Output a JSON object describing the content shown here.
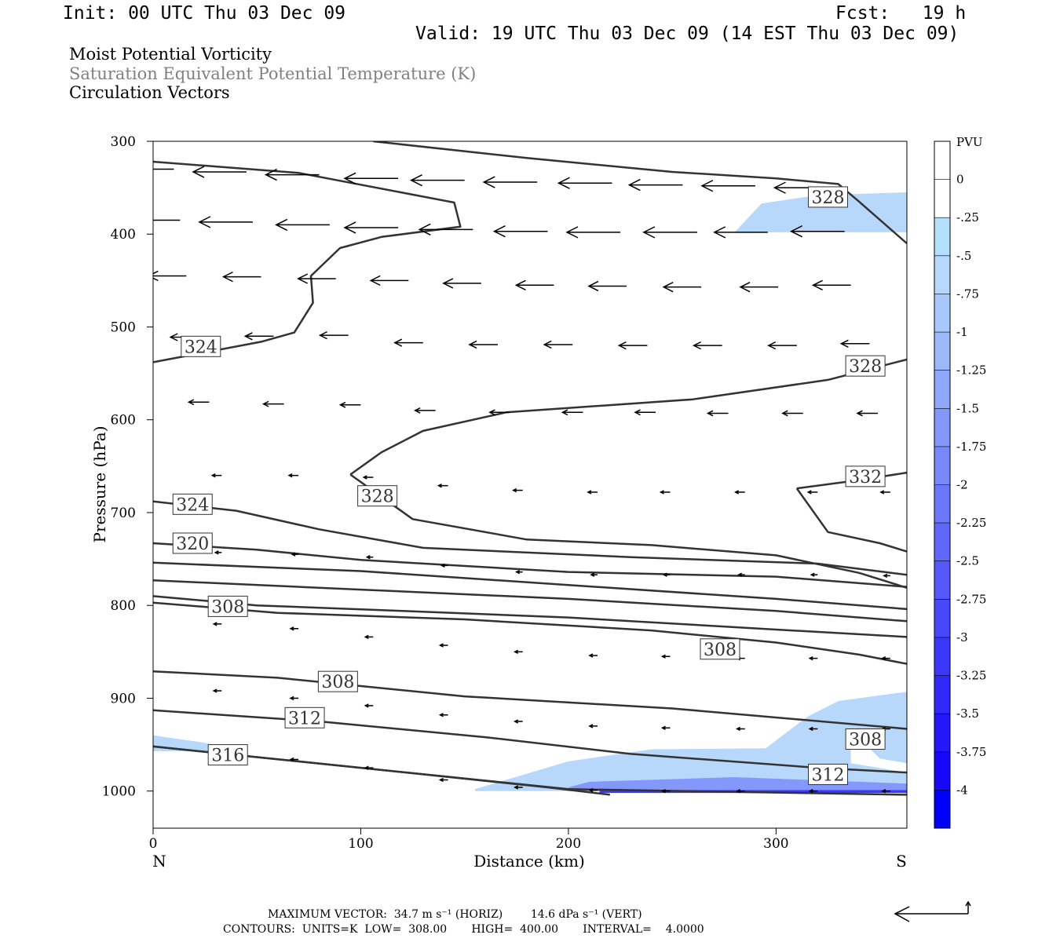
{
  "header": {
    "init": "Init: 00 UTC Thu 03 Dec 09",
    "fcst": "Fcst:   19 h",
    "valid": "Valid: 19 UTC Thu 03 Dec 09 (14 EST Thu 03 Dec 09)"
  },
  "titles": [
    "Moist Potential Vorticity",
    "Saturation Equivalent Potential Temperature (K)",
    "Circulation Vectors"
  ],
  "footer": {
    "max_vector": "MAXIMUM VECTOR:  34.7 m s⁻¹ (HORIZ)        14.6 dPa s⁻¹ (VERT)",
    "contours": "CONTOURS:  UNITS=K  LOW=  308.00       HIGH=  400.00       INTERVAL=    4.0000"
  },
  "colors": {
    "contour": "#333333",
    "fill_light": "#b3e0fa",
    "fill_dark": "#0000ff",
    "vector": "#000000"
  },
  "chart_data": {
    "type": "cross-section",
    "xlabel": "Distance (km)",
    "ylabel": "Pressure (hPa)",
    "xlim": [
      0,
      363
    ],
    "ylim": [
      1040,
      300
    ],
    "xticks": [
      0,
      100,
      200,
      300
    ],
    "yticks": [
      300,
      400,
      500,
      600,
      700,
      800,
      900,
      1000
    ],
    "x_end_labels": {
      "left": "N",
      "right": "S"
    },
    "colorbar": {
      "unit": "PVU",
      "levels": [
        "0",
        "-.25",
        "-.5",
        "-.75",
        "-1",
        "-1.25",
        "-1.5",
        "-1.75",
        "-2",
        "-2.25",
        "-2.5",
        "-2.75",
        "-3",
        "-3.25",
        "-3.5",
        "-3.75",
        "-4"
      ],
      "colors": [
        "#ffffff",
        "#ffffff",
        "#b3e0fa",
        "#b7d8fb",
        "#a8c8fb",
        "#9cb8fb",
        "#90a8fb",
        "#8498fb",
        "#7888fb",
        "#6c78fb",
        "#6068fb",
        "#5458fb",
        "#4848fb",
        "#3c38fb",
        "#3028fb",
        "#2418fb",
        "#1808fb",
        "#0000ff"
      ]
    },
    "contours": [
      {
        "label": "324",
        "points": [
          [
            0,
            538
          ],
          [
            52,
            516
          ],
          [
            68,
            506
          ],
          [
            77,
            474
          ],
          [
            76,
            445
          ],
          [
            90,
            415
          ],
          [
            110,
            403
          ],
          [
            148,
            392
          ],
          [
            145,
            366
          ],
          [
            70,
            334
          ],
          [
            0,
            322
          ]
        ]
      },
      {
        "label": "328",
        "points": [
          [
            106,
            300
          ],
          [
            180,
            318
          ],
          [
            250,
            333
          ],
          [
            300,
            340
          ],
          [
            330,
            346
          ],
          [
            340,
            365
          ],
          [
            363,
            410
          ]
        ]
      },
      {
        "label": "328",
        "points": [
          [
            95,
            659
          ],
          [
            110,
            635
          ],
          [
            130,
            612
          ],
          [
            170,
            592
          ],
          [
            260,
            578
          ],
          [
            325,
            557
          ],
          [
            363,
            535
          ]
        ]
      },
      {
        "label": "328",
        "points": [
          [
            95,
            659
          ],
          [
            125,
            707
          ],
          [
            180,
            729
          ],
          [
            240,
            735
          ],
          [
            300,
            746
          ],
          [
            340,
            765
          ],
          [
            363,
            781
          ]
        ]
      },
      {
        "label": "332",
        "points": [
          [
            310,
            674
          ],
          [
            340,
            665
          ],
          [
            363,
            657
          ]
        ]
      },
      {
        "label": "332",
        "points": [
          [
            310,
            674
          ],
          [
            325,
            721
          ],
          [
            350,
            733
          ],
          [
            363,
            742
          ]
        ]
      },
      {
        "label": "324",
        "points": [
          [
            0,
            688
          ],
          [
            40,
            698
          ],
          [
            80,
            718
          ],
          [
            130,
            738
          ],
          [
            230,
            748
          ],
          [
            320,
            755
          ],
          [
            363,
            767
          ]
        ]
      },
      {
        "label": "320",
        "points": [
          [
            0,
            733
          ],
          [
            50,
            740
          ],
          [
            100,
            751
          ],
          [
            200,
            764
          ],
          [
            300,
            769
          ],
          [
            363,
            780
          ]
        ]
      },
      {
        "label": "",
        "points": [
          [
            0,
            754
          ],
          [
            100,
            763
          ],
          [
            200,
            778
          ],
          [
            300,
            793
          ],
          [
            363,
            804
          ]
        ]
      },
      {
        "label": "",
        "points": [
          [
            0,
            773
          ],
          [
            100,
            783
          ],
          [
            200,
            793
          ],
          [
            300,
            806
          ],
          [
            363,
            817
          ]
        ]
      },
      {
        "label": "308",
        "points": [
          [
            0,
            790
          ],
          [
            50,
            800
          ],
          [
            120,
            806
          ],
          [
            200,
            813
          ],
          [
            300,
            826
          ],
          [
            363,
            834
          ]
        ]
      },
      {
        "label": "308",
        "points": [
          [
            0,
            797
          ],
          [
            60,
            808
          ],
          [
            150,
            815
          ],
          [
            240,
            827
          ],
          [
            300,
            840
          ],
          [
            340,
            853
          ],
          [
            363,
            863
          ]
        ]
      },
      {
        "label": "308",
        "points": [
          [
            0,
            871
          ],
          [
            60,
            878
          ],
          [
            150,
            898
          ],
          [
            250,
            911
          ],
          [
            363,
            933
          ]
        ]
      },
      {
        "label": "312",
        "points": [
          [
            0,
            913
          ],
          [
            80,
            925
          ],
          [
            160,
            942
          ],
          [
            230,
            960
          ],
          [
            320,
            975
          ],
          [
            363,
            980
          ]
        ]
      },
      {
        "label": "316",
        "points": [
          [
            0,
            952
          ],
          [
            100,
            975
          ],
          [
            190,
            996
          ],
          [
            220,
            1004
          ]
        ]
      },
      {
        "label": "",
        "points": [
          [
            0,
            952
          ],
          [
            200,
            998
          ],
          [
            363,
            1004
          ]
        ]
      }
    ],
    "fill_regions": [
      {
        "level": "-.5",
        "points": [
          [
            280,
            398
          ],
          [
            293,
            367
          ],
          [
            320,
            358
          ],
          [
            363,
            355
          ],
          [
            363,
            398
          ]
        ]
      },
      {
        "level": "-.5",
        "points": [
          [
            0,
            940
          ],
          [
            25,
            948
          ],
          [
            40,
            957
          ],
          [
            0,
            957
          ]
        ]
      },
      {
        "level": "-.5",
        "points": [
          [
            155,
            998
          ],
          [
            200,
            968
          ],
          [
            240,
            955
          ],
          [
            295,
            954
          ],
          [
            315,
            920
          ],
          [
            330,
            903
          ],
          [
            363,
            893
          ],
          [
            363,
            970
          ],
          [
            350,
            965
          ],
          [
            343,
            950
          ],
          [
            336,
            947
          ],
          [
            336,
            970
          ],
          [
            363,
            980
          ],
          [
            363,
            1000
          ],
          [
            155,
            1000
          ]
        ]
      },
      {
        "level": "-1.5",
        "points": [
          [
            200,
            996
          ],
          [
            210,
            990
          ],
          [
            280,
            985
          ],
          [
            363,
            992
          ],
          [
            363,
            1000
          ],
          [
            200,
            1000
          ]
        ]
      },
      {
        "level": "-3",
        "points": [
          [
            215,
            999
          ],
          [
            363,
            999
          ],
          [
            363,
            1002
          ],
          [
            215,
            1002
          ]
        ]
      }
    ],
    "vectors": [
      {
        "x": 10,
        "y": 330,
        "u": -1,
        "v": 0
      },
      {
        "x": 45,
        "y": 333,
        "u": -1,
        "v": 0
      },
      {
        "x": 80,
        "y": 336,
        "u": -1,
        "v": 0
      },
      {
        "x": 118,
        "y": 340,
        "u": -1,
        "v": 0
      },
      {
        "x": 150,
        "y": 342,
        "u": -1,
        "v": 0
      },
      {
        "x": 185,
        "y": 344,
        "u": -1,
        "v": 0
      },
      {
        "x": 221,
        "y": 345,
        "u": -1,
        "v": 0
      },
      {
        "x": 255,
        "y": 347,
        "u": -1,
        "v": 0
      },
      {
        "x": 290,
        "y": 348,
        "u": -1,
        "v": 0
      },
      {
        "x": 325,
        "y": 350,
        "u": -1,
        "v": 0
      },
      {
        "x": 13,
        "y": 385,
        "u": -1,
        "v": 0
      },
      {
        "x": 48,
        "y": 387,
        "u": -1,
        "v": 0
      },
      {
        "x": 85,
        "y": 390,
        "u": -1,
        "v": 0
      },
      {
        "x": 118,
        "y": 393,
        "u": -1,
        "v": 0
      },
      {
        "x": 154,
        "y": 395,
        "u": -1,
        "v": 0
      },
      {
        "x": 190,
        "y": 397,
        "u": -1,
        "v": 0
      },
      {
        "x": 225,
        "y": 398,
        "u": -1,
        "v": 0
      },
      {
        "x": 262,
        "y": 398,
        "u": -1,
        "v": 0
      },
      {
        "x": 296,
        "y": 398,
        "u": -1,
        "v": 0
      },
      {
        "x": 333,
        "y": 397,
        "u": -1,
        "v": 0
      },
      {
        "x": 16,
        "y": 445,
        "u": -1,
        "v": 0
      },
      {
        "x": 52,
        "y": 446,
        "u": -1,
        "v": 0
      },
      {
        "x": 88,
        "y": 448,
        "u": -1,
        "v": 0
      },
      {
        "x": 123,
        "y": 450,
        "u": -1,
        "v": 0
      },
      {
        "x": 158,
        "y": 453,
        "u": -1,
        "v": 0
      },
      {
        "x": 193,
        "y": 455,
        "u": -1,
        "v": 0
      },
      {
        "x": 228,
        "y": 456,
        "u": -1,
        "v": 0
      },
      {
        "x": 264,
        "y": 457,
        "u": -1,
        "v": 0
      },
      {
        "x": 301,
        "y": 457,
        "u": -1,
        "v": 0
      },
      {
        "x": 336,
        "y": 455,
        "u": -1,
        "v": 0
      },
      {
        "x": 22,
        "y": 511,
        "u": -1,
        "v": 0
      },
      {
        "x": 58,
        "y": 510,
        "u": -1,
        "v": 0
      },
      {
        "x": 94,
        "y": 509,
        "u": -1,
        "v": 0
      },
      {
        "x": 130,
        "y": 517,
        "u": -1,
        "v": 0
      },
      {
        "x": 166,
        "y": 519,
        "u": -1,
        "v": 0
      },
      {
        "x": 202,
        "y": 519,
        "u": -1,
        "v": 0
      },
      {
        "x": 238,
        "y": 520,
        "u": -1,
        "v": 0
      },
      {
        "x": 274,
        "y": 520,
        "u": -1,
        "v": 0
      },
      {
        "x": 310,
        "y": 520,
        "u": -1,
        "v": 0
      },
      {
        "x": 345,
        "y": 518,
        "u": -1,
        "v": 0
      },
      {
        "x": 27,
        "y": 581,
        "u": -1,
        "v": 0
      },
      {
        "x": 63,
        "y": 583,
        "u": -1,
        "v": 0
      },
      {
        "x": 100,
        "y": 584,
        "u": -1,
        "v": 0
      },
      {
        "x": 136,
        "y": 590,
        "u": -1,
        "v": 0
      },
      {
        "x": 172,
        "y": 592,
        "u": -1,
        "v": 0
      },
      {
        "x": 207,
        "y": 592,
        "u": -1,
        "v": 0
      },
      {
        "x": 242,
        "y": 592,
        "u": -1,
        "v": 0
      },
      {
        "x": 277,
        "y": 593,
        "u": -1,
        "v": 0
      },
      {
        "x": 313,
        "y": 593,
        "u": -1,
        "v": 0
      },
      {
        "x": 349,
        "y": 593,
        "u": -1,
        "v": 0
      },
      {
        "x": 33,
        "y": 660,
        "u": -1,
        "v": 0
      },
      {
        "x": 70,
        "y": 660,
        "u": -1,
        "v": 0
      },
      {
        "x": 106,
        "y": 662,
        "u": -1,
        "v": 0
      },
      {
        "x": 142,
        "y": 671,
        "u": -1,
        "v": 0
      },
      {
        "x": 178,
        "y": 676,
        "u": -1,
        "v": 0
      },
      {
        "x": 214,
        "y": 678,
        "u": -1,
        "v": 0
      },
      {
        "x": 249,
        "y": 678,
        "u": -1,
        "v": 0
      },
      {
        "x": 285,
        "y": 678,
        "u": -1,
        "v": 0
      },
      {
        "x": 320,
        "y": 678,
        "u": -1,
        "v": 0
      },
      {
        "x": 355,
        "y": 678,
        "u": -1,
        "v": 0
      },
      {
        "x": 33,
        "y": 743,
        "u": -1,
        "v": 0
      },
      {
        "x": 70,
        "y": 745,
        "u": -1,
        "v": 0
      },
      {
        "x": 106,
        "y": 748,
        "u": -1,
        "v": 0
      },
      {
        "x": 142,
        "y": 757,
        "u": -1,
        "v": 0
      },
      {
        "x": 178,
        "y": 764,
        "u": -1,
        "v": 0
      },
      {
        "x": 214,
        "y": 767,
        "u": -1,
        "v": 0
      },
      {
        "x": 249,
        "y": 767,
        "u": -1,
        "v": 0
      },
      {
        "x": 285,
        "y": 767,
        "u": -1,
        "v": 0
      },
      {
        "x": 320,
        "y": 767,
        "u": -1,
        "v": 0
      },
      {
        "x": 355,
        "y": 768,
        "u": -1,
        "v": 0
      },
      {
        "x": 33,
        "y": 820,
        "u": -1,
        "v": 0
      },
      {
        "x": 70,
        "y": 825,
        "u": -1,
        "v": 0
      },
      {
        "x": 106,
        "y": 834,
        "u": -1,
        "v": 0
      },
      {
        "x": 142,
        "y": 843,
        "u": -1,
        "v": 0
      },
      {
        "x": 178,
        "y": 850,
        "u": -1,
        "v": 0
      },
      {
        "x": 214,
        "y": 854,
        "u": -1,
        "v": 0
      },
      {
        "x": 249,
        "y": 855,
        "u": -1,
        "v": 0
      },
      {
        "x": 285,
        "y": 857,
        "u": -1,
        "v": 0
      },
      {
        "x": 320,
        "y": 857,
        "u": -1,
        "v": 0
      },
      {
        "x": 355,
        "y": 857,
        "u": -1,
        "v": 0
      },
      {
        "x": 33,
        "y": 892,
        "u": -1,
        "v": 0
      },
      {
        "x": 70,
        "y": 900,
        "u": -1,
        "v": 0
      },
      {
        "x": 106,
        "y": 908,
        "u": -1,
        "v": 0
      },
      {
        "x": 142,
        "y": 918,
        "u": -1,
        "v": 0
      },
      {
        "x": 178,
        "y": 925,
        "u": -1,
        "v": 0
      },
      {
        "x": 214,
        "y": 930,
        "u": -1,
        "v": 0
      },
      {
        "x": 249,
        "y": 932,
        "u": -1,
        "v": 0
      },
      {
        "x": 285,
        "y": 933,
        "u": -1,
        "v": 0
      },
      {
        "x": 320,
        "y": 933,
        "u": -1,
        "v": 0
      },
      {
        "x": 355,
        "y": 933,
        "u": -1,
        "v": 0
      },
      {
        "x": 33,
        "y": 960,
        "u": -1,
        "v": 0
      },
      {
        "x": 70,
        "y": 966,
        "u": -1,
        "v": 0
      },
      {
        "x": 106,
        "y": 975,
        "u": -1,
        "v": 0
      },
      {
        "x": 142,
        "y": 988,
        "u": -1,
        "v": 0
      },
      {
        "x": 178,
        "y": 996,
        "u": -1,
        "v": 0
      },
      {
        "x": 214,
        "y": 999,
        "u": -1,
        "v": 0
      },
      {
        "x": 249,
        "y": 1000,
        "u": -1,
        "v": 0
      },
      {
        "x": 285,
        "y": 1000,
        "u": -1,
        "v": 0
      },
      {
        "x": 320,
        "y": 1000,
        "u": -1,
        "v": 0
      },
      {
        "x": 355,
        "y": 1000,
        "u": -1,
        "v": 0
      }
    ]
  }
}
